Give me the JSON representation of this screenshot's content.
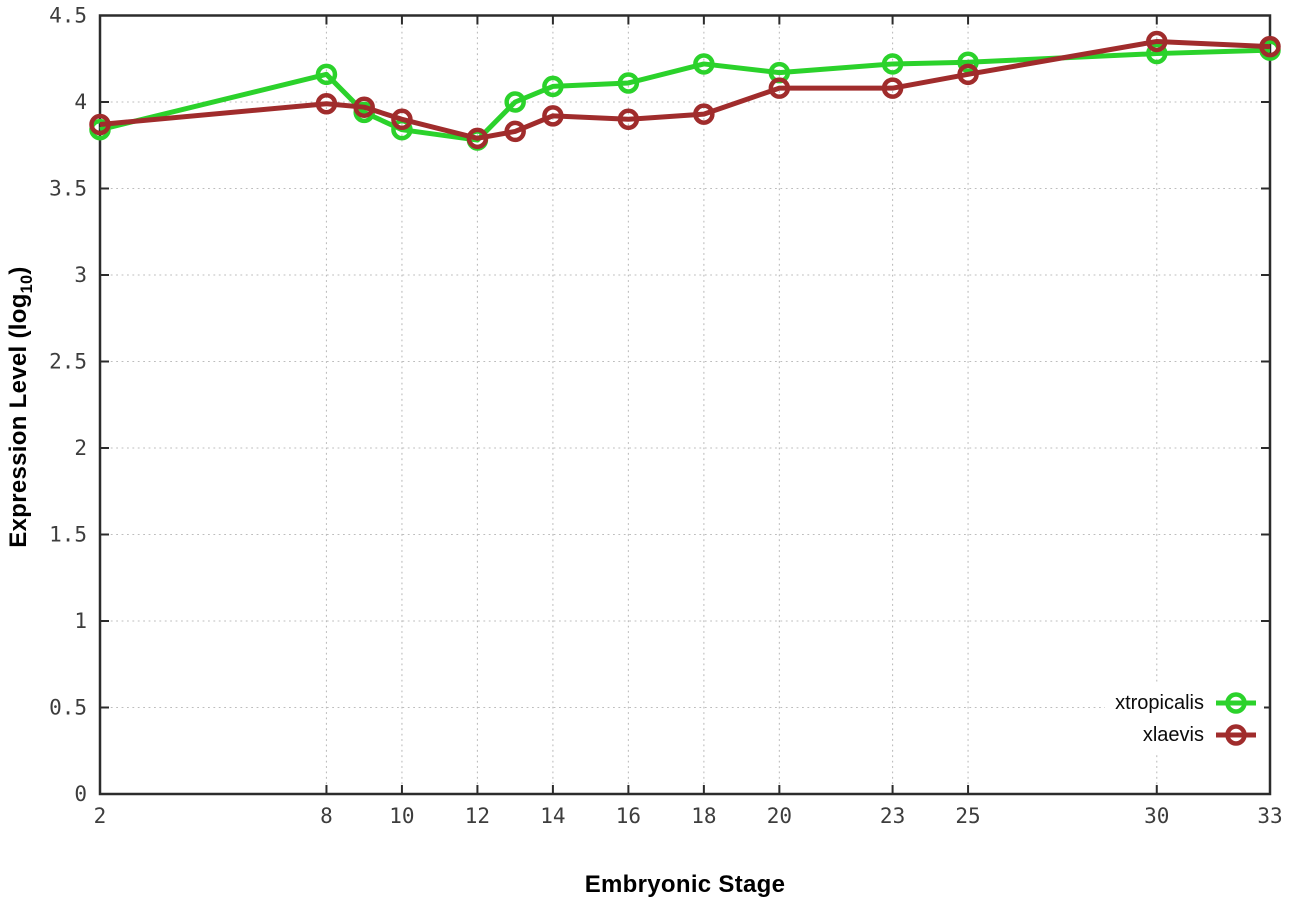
{
  "figure": {
    "background": "#ffffff",
    "axis_color": "#2c2c2c",
    "grid_color": "#bdbdbd",
    "tick_label_color": "#3d3d3d"
  },
  "chart_data": {
    "type": "line",
    "title": "",
    "xlabel": "Embryonic Stage",
    "ylabel": "Expression Level (log10)",
    "ylabel_parts": {
      "prefix": "Expression Level (log",
      "sub": "10",
      "suffix": ")"
    },
    "xlim": [
      2,
      33
    ],
    "ylim": [
      0,
      4.5
    ],
    "xticks": [
      2,
      8,
      10,
      12,
      14,
      16,
      18,
      20,
      23,
      25,
      30,
      33
    ],
    "yticks": [
      0,
      0.5,
      1,
      1.5,
      2,
      2.5,
      3,
      3.5,
      4,
      4.5
    ],
    "grid": true,
    "marker": "open-circle",
    "legend_position": "bottom-right",
    "x": [
      2,
      8,
      9,
      10,
      12,
      13,
      14,
      16,
      18,
      20,
      23,
      25,
      30,
      33
    ],
    "series": [
      {
        "name": "xtropicalis",
        "color": "#2bd22b",
        "values": [
          3.84,
          4.16,
          3.94,
          3.84,
          3.78,
          4.0,
          4.09,
          4.11,
          4.22,
          4.17,
          4.22,
          4.23,
          4.28,
          4.3
        ]
      },
      {
        "name": "xlaevis",
        "color": "#a02c2c",
        "values": [
          3.87,
          3.99,
          3.97,
          3.9,
          3.79,
          3.83,
          3.92,
          3.9,
          3.93,
          4.08,
          4.08,
          4.16,
          4.35,
          4.32
        ]
      }
    ]
  }
}
